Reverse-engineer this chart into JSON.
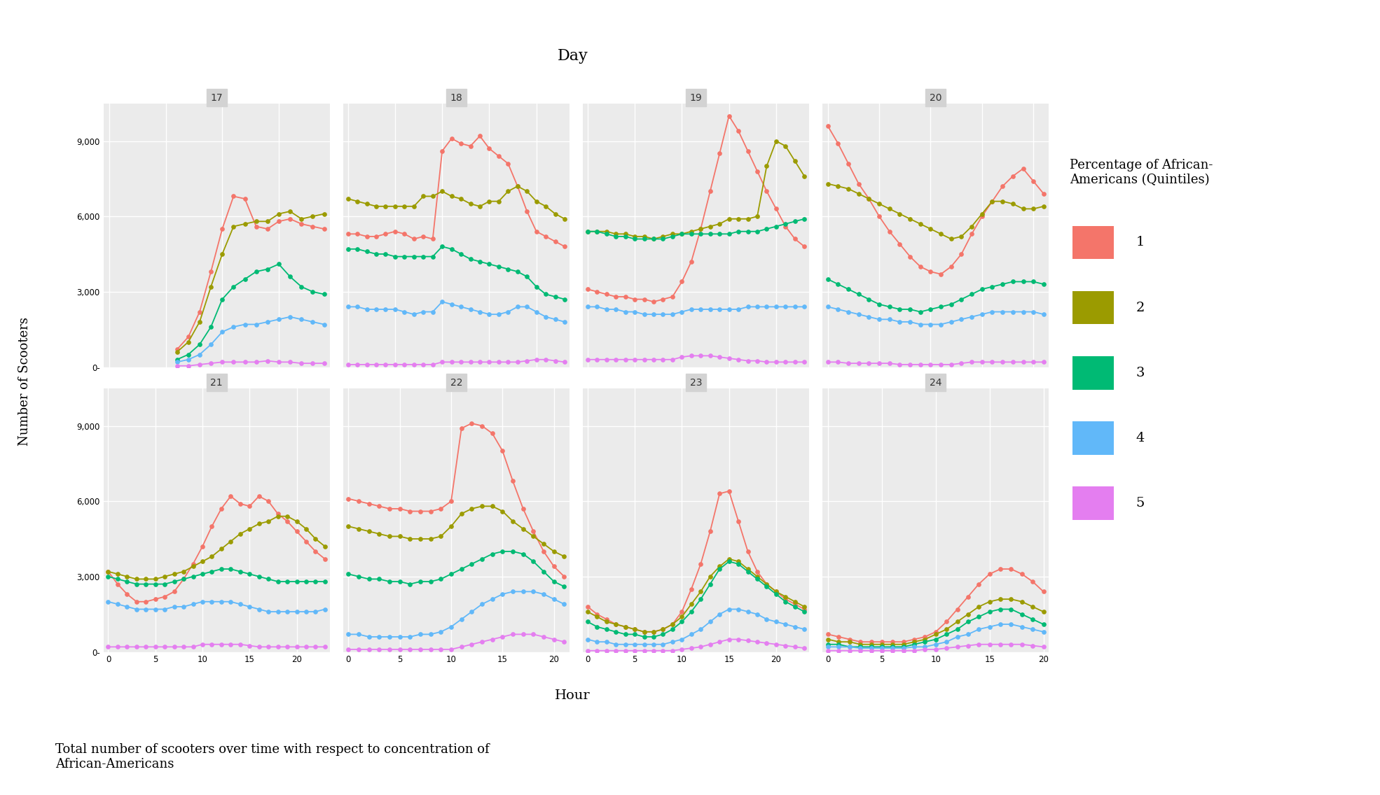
{
  "title_top": "Day",
  "xlabel": "Hour",
  "ylabel": "Number of Scooters",
  "caption": "Total number of scooters over time with respect to concentration of\nAfrican-Americans",
  "legend_title": "Percentage of African-\nAmericans (Quintiles)",
  "legend_labels": [
    "1",
    "2",
    "3",
    "4",
    "5"
  ],
  "colors": [
    "#F4756A",
    "#9B9B00",
    "#00BA74",
    "#61B8F9",
    "#E47EF0"
  ],
  "days": [
    17,
    18,
    19,
    20,
    21,
    22,
    23,
    24
  ],
  "ylim": [
    0,
    10500
  ],
  "yticks": [
    0,
    3000,
    6000,
    9000
  ],
  "background_color": "#EBEBEB",
  "data": {
    "17": {
      "hours": [
        6,
        7,
        8,
        9,
        10,
        11,
        12,
        13,
        14,
        15,
        16,
        17,
        18,
        19
      ],
      "q1": [
        700,
        1200,
        2200,
        3800,
        5500,
        6800,
        6700,
        5600,
        5500,
        5800,
        5900,
        5700,
        5600,
        5500
      ],
      "q2": [
        600,
        1000,
        1800,
        3200,
        4500,
        5600,
        5700,
        5800,
        5800,
        6100,
        6200,
        5900,
        6000,
        6100
      ],
      "q3": [
        300,
        500,
        900,
        1600,
        2700,
        3200,
        3500,
        3800,
        3900,
        4100,
        3600,
        3200,
        3000,
        2900
      ],
      "q4": [
        200,
        300,
        500,
        900,
        1400,
        1600,
        1700,
        1700,
        1800,
        1900,
        2000,
        1900,
        1800,
        1700
      ],
      "q5": [
        50,
        50,
        100,
        150,
        200,
        200,
        200,
        200,
        250,
        200,
        200,
        150,
        150,
        150
      ]
    },
    "18": {
      "hours": [
        0,
        1,
        2,
        3,
        4,
        5,
        6,
        7,
        8,
        9,
        10,
        11,
        12,
        13,
        14,
        15,
        16,
        17,
        18,
        19,
        20,
        21,
        22,
        23
      ],
      "q1": [
        5300,
        5300,
        5200,
        5200,
        5300,
        5400,
        5300,
        5100,
        5200,
        5100,
        8600,
        9100,
        8900,
        8800,
        9200,
        8700,
        8400,
        8100,
        7200,
        6200,
        5400,
        5200,
        5000,
        4800
      ],
      "q2": [
        6700,
        6600,
        6500,
        6400,
        6400,
        6400,
        6400,
        6400,
        6800,
        6800,
        7000,
        6800,
        6700,
        6500,
        6400,
        6600,
        6600,
        7000,
        7200,
        7000,
        6600,
        6400,
        6100,
        5900
      ],
      "q3": [
        4700,
        4700,
        4600,
        4500,
        4500,
        4400,
        4400,
        4400,
        4400,
        4400,
        4800,
        4700,
        4500,
        4300,
        4200,
        4100,
        4000,
        3900,
        3800,
        3600,
        3200,
        2900,
        2800,
        2700
      ],
      "q4": [
        2400,
        2400,
        2300,
        2300,
        2300,
        2300,
        2200,
        2100,
        2200,
        2200,
        2600,
        2500,
        2400,
        2300,
        2200,
        2100,
        2100,
        2200,
        2400,
        2400,
        2200,
        2000,
        1900,
        1800
      ],
      "q5": [
        100,
        100,
        100,
        100,
        100,
        100,
        100,
        100,
        100,
        100,
        200,
        200,
        200,
        200,
        200,
        200,
        200,
        200,
        200,
        250,
        300,
        300,
        250,
        200
      ]
    },
    "19": {
      "hours": [
        0,
        1,
        2,
        3,
        4,
        5,
        6,
        7,
        8,
        9,
        10,
        11,
        12,
        13,
        14,
        15,
        16,
        17,
        18,
        19,
        20,
        21,
        22,
        23
      ],
      "q1": [
        3100,
        3000,
        2900,
        2800,
        2800,
        2700,
        2700,
        2600,
        2700,
        2800,
        3400,
        4200,
        5500,
        7000,
        8500,
        10000,
        9400,
        8600,
        7800,
        7000,
        6300,
        5600,
        5100,
        4800
      ],
      "q2": [
        5400,
        5400,
        5400,
        5300,
        5300,
        5200,
        5200,
        5100,
        5200,
        5300,
        5300,
        5400,
        5500,
        5600,
        5700,
        5900,
        5900,
        5900,
        6000,
        8000,
        9000,
        8800,
        8200,
        7600
      ],
      "q3": [
        5400,
        5400,
        5300,
        5200,
        5200,
        5100,
        5100,
        5100,
        5100,
        5200,
        5300,
        5300,
        5300,
        5300,
        5300,
        5300,
        5400,
        5400,
        5400,
        5500,
        5600,
        5700,
        5800,
        5900
      ],
      "q4": [
        2400,
        2400,
        2300,
        2300,
        2200,
        2200,
        2100,
        2100,
        2100,
        2100,
        2200,
        2300,
        2300,
        2300,
        2300,
        2300,
        2300,
        2400,
        2400,
        2400,
        2400,
        2400,
        2400,
        2400
      ],
      "q5": [
        300,
        300,
        300,
        300,
        300,
        300,
        300,
        300,
        300,
        300,
        400,
        450,
        450,
        450,
        400,
        350,
        300,
        250,
        250,
        200,
        200,
        200,
        200,
        200
      ]
    },
    "20": {
      "hours": [
        0,
        1,
        2,
        3,
        4,
        5,
        6,
        7,
        8,
        9,
        10,
        11,
        12,
        13,
        14,
        15,
        16,
        17,
        18,
        19,
        20,
        21
      ],
      "q1": [
        9600,
        8900,
        8100,
        7300,
        6700,
        6000,
        5400,
        4900,
        4400,
        4000,
        3800,
        3700,
        4000,
        4500,
        5300,
        6000,
        6600,
        7200,
        7600,
        7900,
        7400,
        6900
      ],
      "q2": [
        7300,
        7200,
        7100,
        6900,
        6700,
        6500,
        6300,
        6100,
        5900,
        5700,
        5500,
        5300,
        5100,
        5200,
        5600,
        6100,
        6600,
        6600,
        6500,
        6300,
        6300,
        6400
      ],
      "q3": [
        3500,
        3300,
        3100,
        2900,
        2700,
        2500,
        2400,
        2300,
        2300,
        2200,
        2300,
        2400,
        2500,
        2700,
        2900,
        3100,
        3200,
        3300,
        3400,
        3400,
        3400,
        3300
      ],
      "q4": [
        2400,
        2300,
        2200,
        2100,
        2000,
        1900,
        1900,
        1800,
        1800,
        1700,
        1700,
        1700,
        1800,
        1900,
        2000,
        2100,
        2200,
        2200,
        2200,
        2200,
        2200,
        2100
      ],
      "q5": [
        200,
        200,
        150,
        150,
        150,
        150,
        150,
        100,
        100,
        100,
        100,
        100,
        100,
        150,
        200,
        200,
        200,
        200,
        200,
        200,
        200,
        200
      ]
    },
    "21": {
      "hours": [
        0,
        1,
        2,
        3,
        4,
        5,
        6,
        7,
        8,
        9,
        10,
        11,
        12,
        13,
        14,
        15,
        16,
        17,
        18,
        19,
        20,
        21,
        22,
        23
      ],
      "q1": [
        3200,
        2700,
        2300,
        2000,
        2000,
        2100,
        2200,
        2400,
        2900,
        3500,
        4200,
        5000,
        5700,
        6200,
        5900,
        5800,
        6200,
        6000,
        5500,
        5200,
        4800,
        4400,
        4000,
        3700
      ],
      "q2": [
        3200,
        3100,
        3000,
        2900,
        2900,
        2900,
        3000,
        3100,
        3200,
        3400,
        3600,
        3800,
        4100,
        4400,
        4700,
        4900,
        5100,
        5200,
        5400,
        5400,
        5200,
        4900,
        4500,
        4200
      ],
      "q3": [
        3000,
        2900,
        2800,
        2700,
        2700,
        2700,
        2700,
        2800,
        2900,
        3000,
        3100,
        3200,
        3300,
        3300,
        3200,
        3100,
        3000,
        2900,
        2800,
        2800,
        2800,
        2800,
        2800,
        2800
      ],
      "q4": [
        2000,
        1900,
        1800,
        1700,
        1700,
        1700,
        1700,
        1800,
        1800,
        1900,
        2000,
        2000,
        2000,
        2000,
        1900,
        1800,
        1700,
        1600,
        1600,
        1600,
        1600,
        1600,
        1600,
        1700
      ],
      "q5": [
        200,
        200,
        200,
        200,
        200,
        200,
        200,
        200,
        200,
        200,
        300,
        300,
        300,
        300,
        300,
        250,
        200,
        200,
        200,
        200,
        200,
        200,
        200,
        200
      ]
    },
    "22": {
      "hours": [
        0,
        1,
        2,
        3,
        4,
        5,
        6,
        7,
        8,
        9,
        10,
        11,
        12,
        13,
        14,
        15,
        16,
        17,
        18,
        19,
        20,
        21
      ],
      "q1": [
        6100,
        6000,
        5900,
        5800,
        5700,
        5700,
        5600,
        5600,
        5600,
        5700,
        6000,
        8900,
        9100,
        9000,
        8700,
        8000,
        6800,
        5700,
        4800,
        4000,
        3400,
        3000
      ],
      "q2": [
        5000,
        4900,
        4800,
        4700,
        4600,
        4600,
        4500,
        4500,
        4500,
        4600,
        5000,
        5500,
        5700,
        5800,
        5800,
        5600,
        5200,
        4900,
        4600,
        4300,
        4000,
        3800
      ],
      "q3": [
        3100,
        3000,
        2900,
        2900,
        2800,
        2800,
        2700,
        2800,
        2800,
        2900,
        3100,
        3300,
        3500,
        3700,
        3900,
        4000,
        4000,
        3900,
        3600,
        3200,
        2800,
        2600
      ],
      "q4": [
        700,
        700,
        600,
        600,
        600,
        600,
        600,
        700,
        700,
        800,
        1000,
        1300,
        1600,
        1900,
        2100,
        2300,
        2400,
        2400,
        2400,
        2300,
        2100,
        1900
      ],
      "q5": [
        100,
        100,
        100,
        100,
        100,
        100,
        100,
        100,
        100,
        100,
        100,
        200,
        300,
        400,
        500,
        600,
        700,
        700,
        700,
        600,
        500,
        400
      ]
    },
    "23": {
      "hours": [
        0,
        1,
        2,
        3,
        4,
        5,
        6,
        7,
        8,
        9,
        10,
        11,
        12,
        13,
        14,
        15,
        16,
        17,
        18,
        19,
        20,
        21,
        22,
        23
      ],
      "q1": [
        1800,
        1500,
        1300,
        1100,
        1000,
        900,
        800,
        800,
        900,
        1100,
        1600,
        2500,
        3500,
        4800,
        6300,
        6400,
        5200,
        4000,
        3200,
        2700,
        2400,
        2100,
        1900,
        1700
      ],
      "q2": [
        1600,
        1400,
        1200,
        1100,
        1000,
        900,
        800,
        800,
        900,
        1100,
        1400,
        1900,
        2400,
        3000,
        3400,
        3700,
        3600,
        3300,
        3000,
        2700,
        2400,
        2200,
        2000,
        1800
      ],
      "q3": [
        1200,
        1000,
        900,
        800,
        700,
        700,
        600,
        600,
        700,
        900,
        1200,
        1600,
        2100,
        2700,
        3300,
        3600,
        3500,
        3200,
        2900,
        2600,
        2300,
        2000,
        1800,
        1600
      ],
      "q4": [
        500,
        400,
        400,
        300,
        300,
        300,
        300,
        300,
        300,
        400,
        500,
        700,
        900,
        1200,
        1500,
        1700,
        1700,
        1600,
        1500,
        1300,
        1200,
        1100,
        1000,
        900
      ],
      "q5": [
        50,
        50,
        50,
        50,
        50,
        50,
        50,
        50,
        50,
        50,
        100,
        150,
        200,
        300,
        400,
        500,
        500,
        450,
        400,
        350,
        300,
        250,
        200,
        150
      ]
    },
    "24": {
      "hours": [
        0,
        1,
        2,
        3,
        4,
        5,
        6,
        7,
        8,
        9,
        10,
        11,
        12,
        13,
        14,
        15,
        16,
        17,
        18,
        19,
        20
      ],
      "q1": [
        700,
        600,
        500,
        400,
        400,
        400,
        400,
        400,
        500,
        600,
        800,
        1200,
        1700,
        2200,
        2700,
        3100,
        3300,
        3300,
        3100,
        2800,
        2400
      ],
      "q2": [
        500,
        400,
        400,
        300,
        300,
        300,
        300,
        300,
        400,
        500,
        700,
        900,
        1200,
        1500,
        1800,
        2000,
        2100,
        2100,
        2000,
        1800,
        1600
      ],
      "q3": [
        300,
        300,
        200,
        200,
        200,
        200,
        200,
        200,
        300,
        400,
        500,
        700,
        900,
        1200,
        1400,
        1600,
        1700,
        1700,
        1500,
        1300,
        1100
      ],
      "q4": [
        200,
        200,
        200,
        150,
        150,
        150,
        150,
        150,
        200,
        200,
        300,
        400,
        600,
        700,
        900,
        1000,
        1100,
        1100,
        1000,
        900,
        800
      ],
      "q5": [
        50,
        50,
        50,
        50,
        50,
        50,
        50,
        50,
        50,
        100,
        100,
        150,
        200,
        250,
        300,
        300,
        300,
        300,
        300,
        250,
        200
      ]
    }
  }
}
